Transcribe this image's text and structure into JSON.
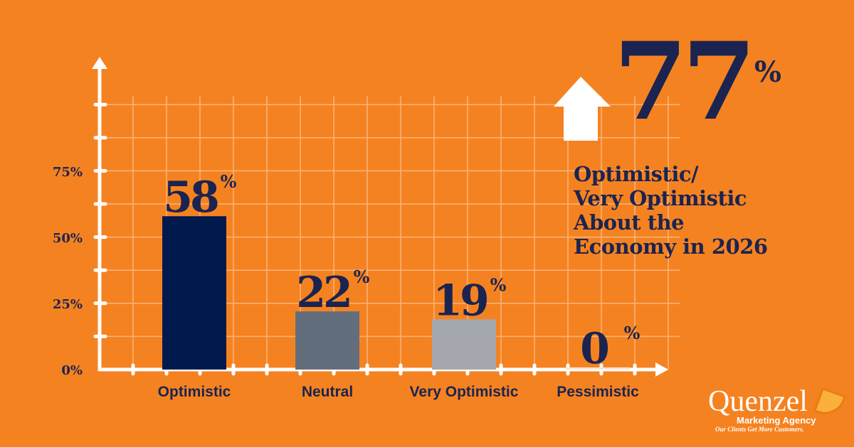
{
  "chart_data": {
    "type": "bar",
    "categories": [
      "Optimistic",
      "Neutral",
      "Very Optimistic",
      "Pessimistic"
    ],
    "values": [
      58,
      22,
      19,
      0
    ],
    "value_labels": [
      "58",
      "22",
      "19",
      "0"
    ],
    "value_suffix": "%",
    "colors": [
      "#001a4d",
      "#636e7d",
      "#a3a7ad",
      "#f4e6d6"
    ],
    "yticks": [
      "0%",
      "25%",
      "50%",
      "75%"
    ],
    "ytick_values": [
      0,
      25,
      50,
      75
    ],
    "ylim": [
      0,
      100
    ],
    "grid": true,
    "title": "",
    "xlabel": "",
    "ylabel": ""
  },
  "callout": {
    "value": "77",
    "suffix": "%",
    "icon": "up-arrow-icon",
    "text": "Optimistic/\nVery Optimistic\nAbout the\nEconomy in 2026"
  },
  "logo": {
    "name": "Quenzel",
    "sub": "Marketing Agency",
    "tagline": "Our Clients Get More Customers."
  },
  "colors": {
    "background": "#f58220",
    "text": "#1b2450"
  }
}
